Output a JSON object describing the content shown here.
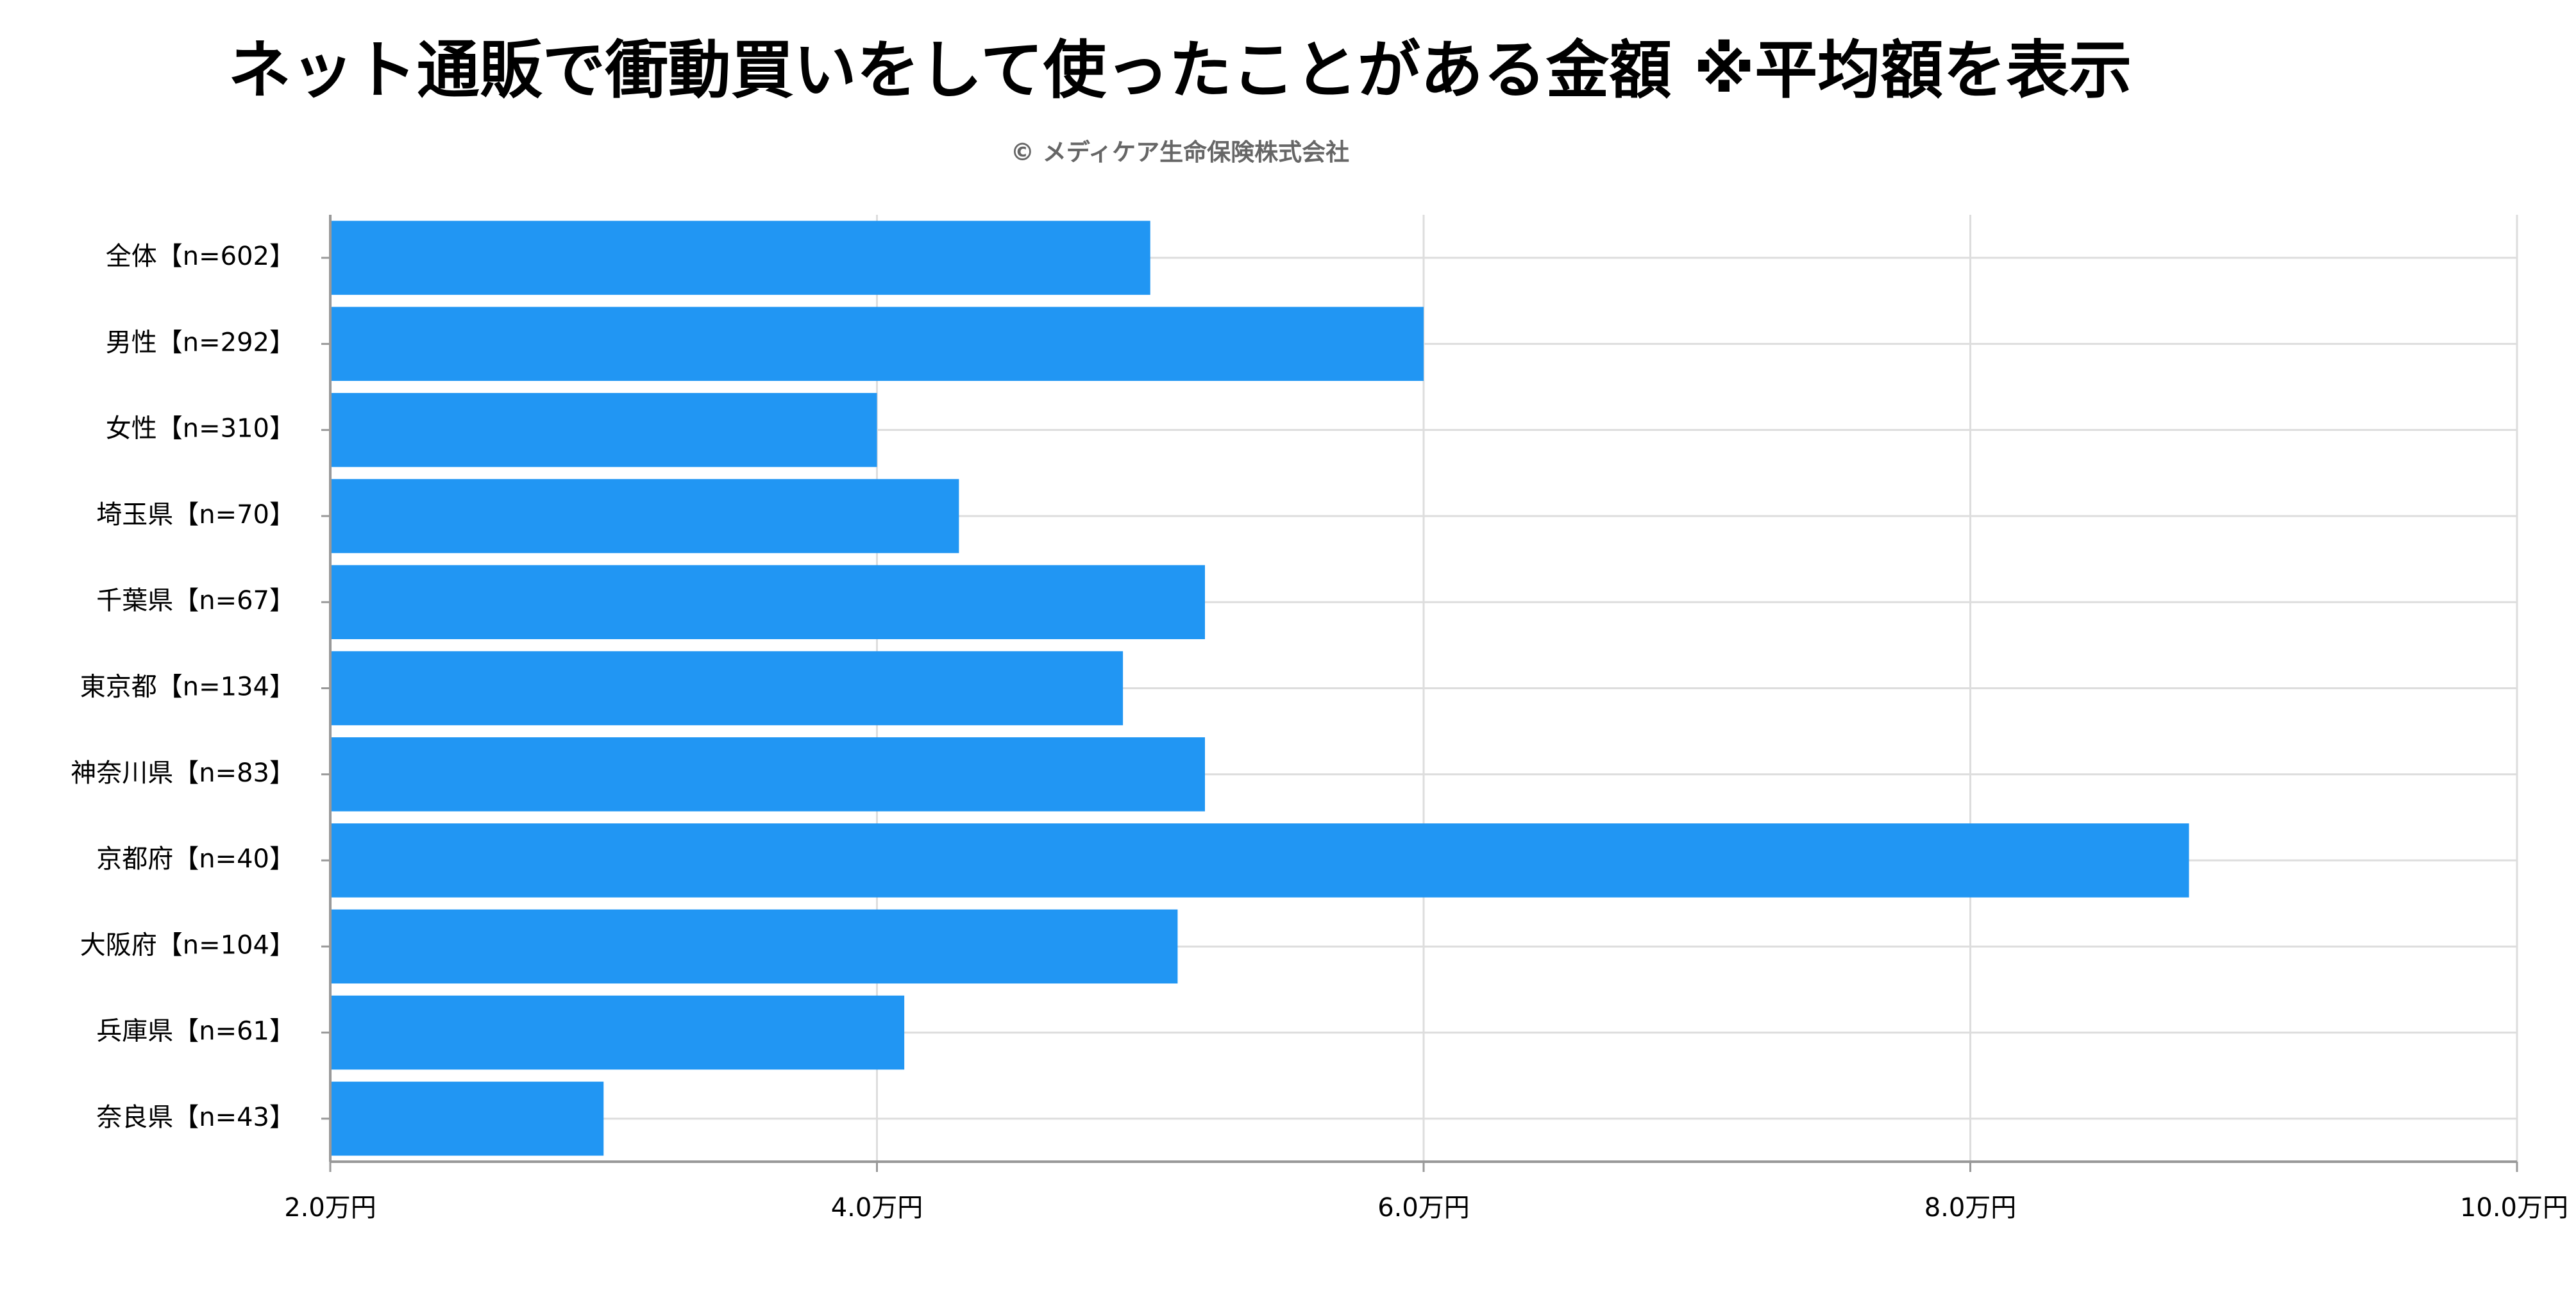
{
  "chart_data": {
    "type": "bar",
    "orientation": "horizontal",
    "title": "ネット通販で衝動買いをして使ったことがある金額 ※平均額を表示",
    "subtitle": "© メディケア生命保険株式会社",
    "categories": [
      "全体【n=602】",
      "男性【n=292】",
      "女性【n=310】",
      "埼玉県【n=70】",
      "千葉県【n=67】",
      "東京都【n=134】",
      "神奈川県【n=83】",
      "京都府【n=40】",
      "大阪府【n=104】",
      "兵庫県【n=61】",
      "奈良県【n=43】"
    ],
    "values": [
      5.0,
      6.0,
      4.0,
      4.3,
      5.2,
      4.9,
      5.2,
      8.8,
      5.1,
      4.1,
      3.0
    ],
    "xlim": [
      2.0,
      10.0
    ],
    "x_ticks": [
      2.0,
      4.0,
      6.0,
      8.0,
      10.0
    ],
    "x_tick_labels": [
      "2.0万円",
      "4.0万円",
      "6.0万円",
      "8.0万円",
      "10.0万円"
    ],
    "grid": true,
    "bar_color": "#2196F3",
    "grid_color": "#DDDDDD",
    "axis_color": "#999999"
  }
}
